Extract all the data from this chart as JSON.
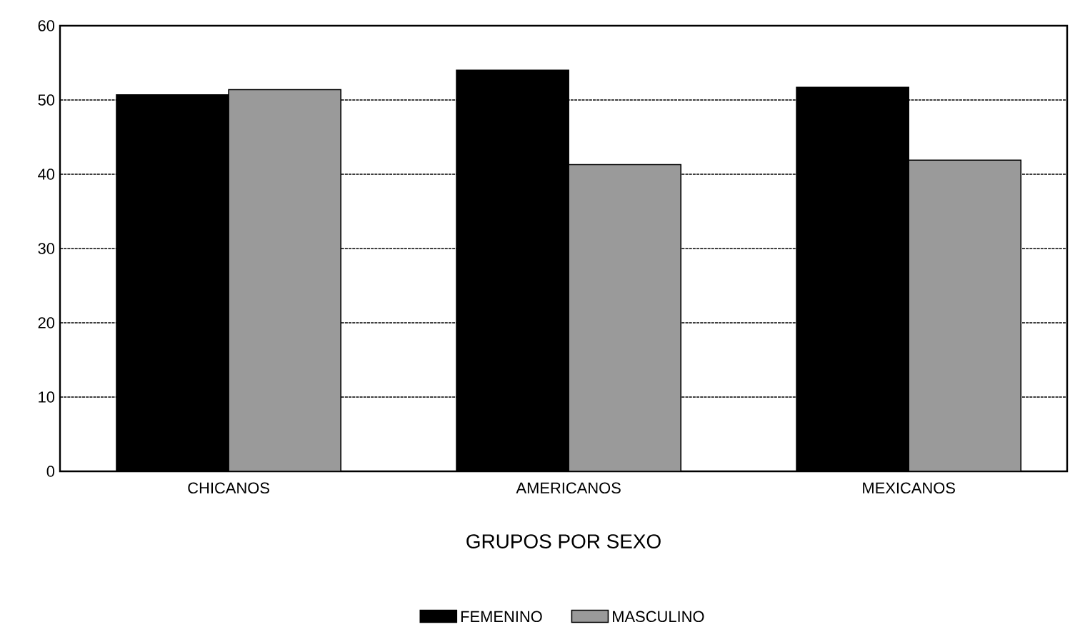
{
  "chart_data": {
    "type": "bar",
    "xlabel": "GRUPOS POR SEXO",
    "categories": [
      "CHICANOS",
      "AMERICANOS",
      "MEXICANOS"
    ],
    "series": [
      {
        "name": "FEMENINO",
        "color": "#000000",
        "values": [
          50.7,
          54.0,
          51.7
        ]
      },
      {
        "name": "MASCULINO",
        "color": "#9a9a9a",
        "values": [
          51.4,
          41.3,
          41.9
        ]
      }
    ],
    "ylim": [
      0,
      60
    ],
    "yticks": [
      0,
      10,
      20,
      30,
      40,
      50,
      60
    ],
    "grid": "y",
    "legend": "bottom"
  }
}
